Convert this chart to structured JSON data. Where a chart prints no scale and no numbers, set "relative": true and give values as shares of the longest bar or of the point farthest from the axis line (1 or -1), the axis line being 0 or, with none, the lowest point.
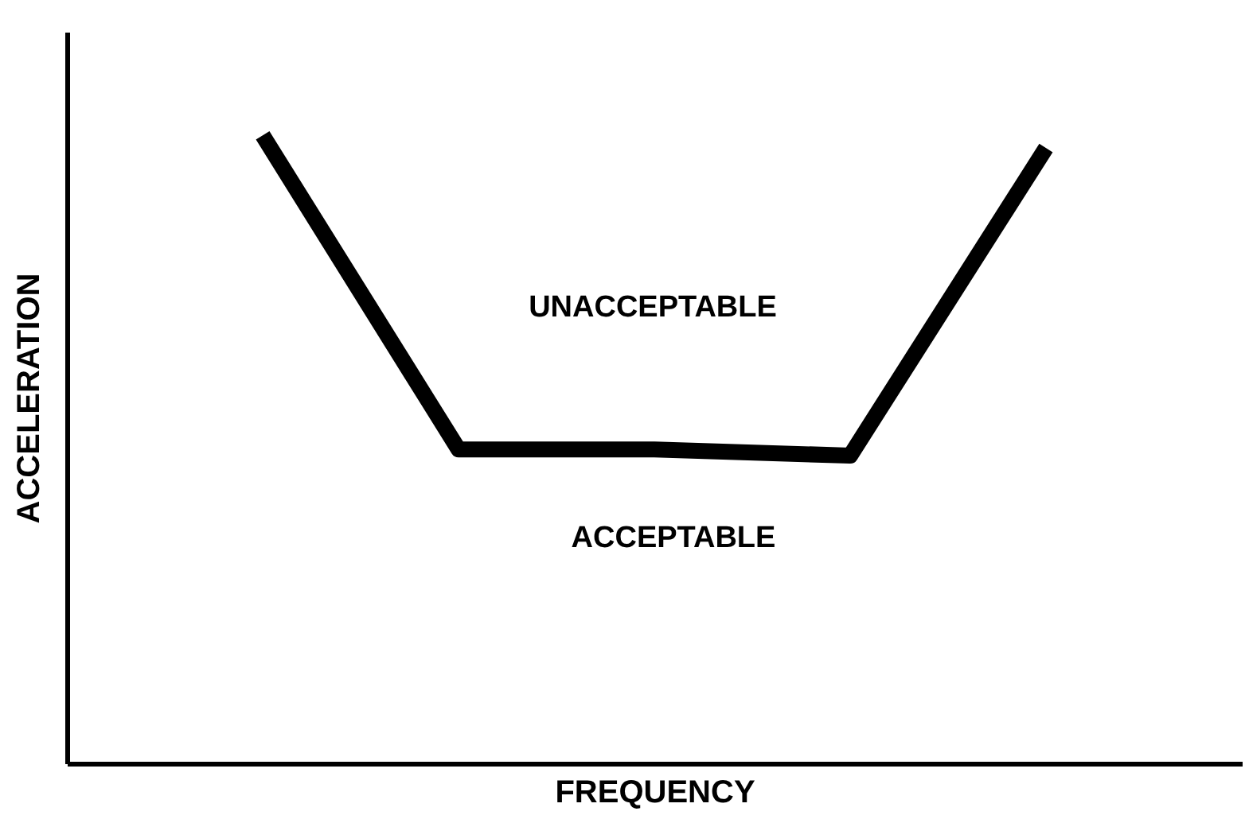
{
  "chart_data": {
    "type": "line",
    "xlabel": "FREQUENCY",
    "ylabel": "ACCELERATION",
    "categories": [
      null,
      null,
      null,
      null,
      null
    ],
    "values": [
      1,
      0.5,
      0.5,
      0.49,
      0.98
    ],
    "color": "#000000",
    "relative": true,
    "annotations": [
      "UNACCEPTABLE",
      "ACCEPTABLE"
    ]
  }
}
